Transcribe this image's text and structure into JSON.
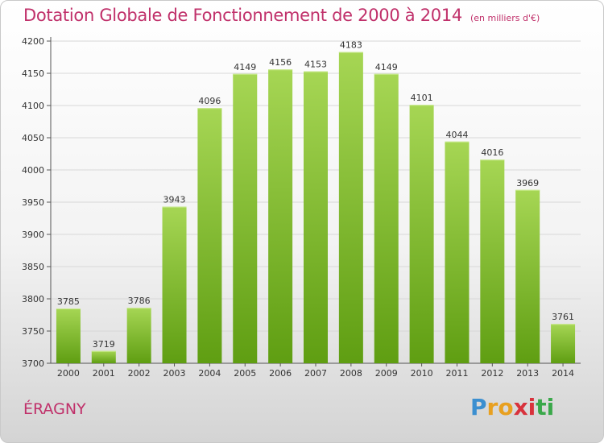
{
  "title": "Dotation Globale de Fonctionnement de 2000 à 2014",
  "subtitle": "(en milliers d'€)",
  "commune": "ÉRAGNY",
  "logo": {
    "text": "Proxiti",
    "colors": [
      "#3b8fd0",
      "#e8a020",
      "#d8323c",
      "#3aa84a"
    ]
  },
  "colors": {
    "title": "#c0306a",
    "bar_top": "#a6d654",
    "bar_bottom": "#5f9e12",
    "grid": "#d8d8d8"
  },
  "chart_data": {
    "type": "bar",
    "categories": [
      "2000",
      "2001",
      "2002",
      "2003",
      "2004",
      "2005",
      "2006",
      "2007",
      "2008",
      "2009",
      "2010",
      "2011",
      "2012",
      "2013",
      "2014"
    ],
    "values": [
      3785,
      3719,
      3786,
      3943,
      4096,
      4149,
      4156,
      4153,
      4183,
      4149,
      4101,
      4044,
      4016,
      3969,
      3761
    ],
    "title": "Dotation Globale de Fonctionnement de 2000 à 2014",
    "subtitle": "(en milliers d'€)",
    "xlabel": "",
    "ylabel": "",
    "ylim": [
      3700,
      4200
    ],
    "yticks": [
      3700,
      3750,
      3800,
      3850,
      3900,
      3950,
      4000,
      4050,
      4100,
      4150,
      4200
    ],
    "grid": true,
    "data_labels": true
  }
}
